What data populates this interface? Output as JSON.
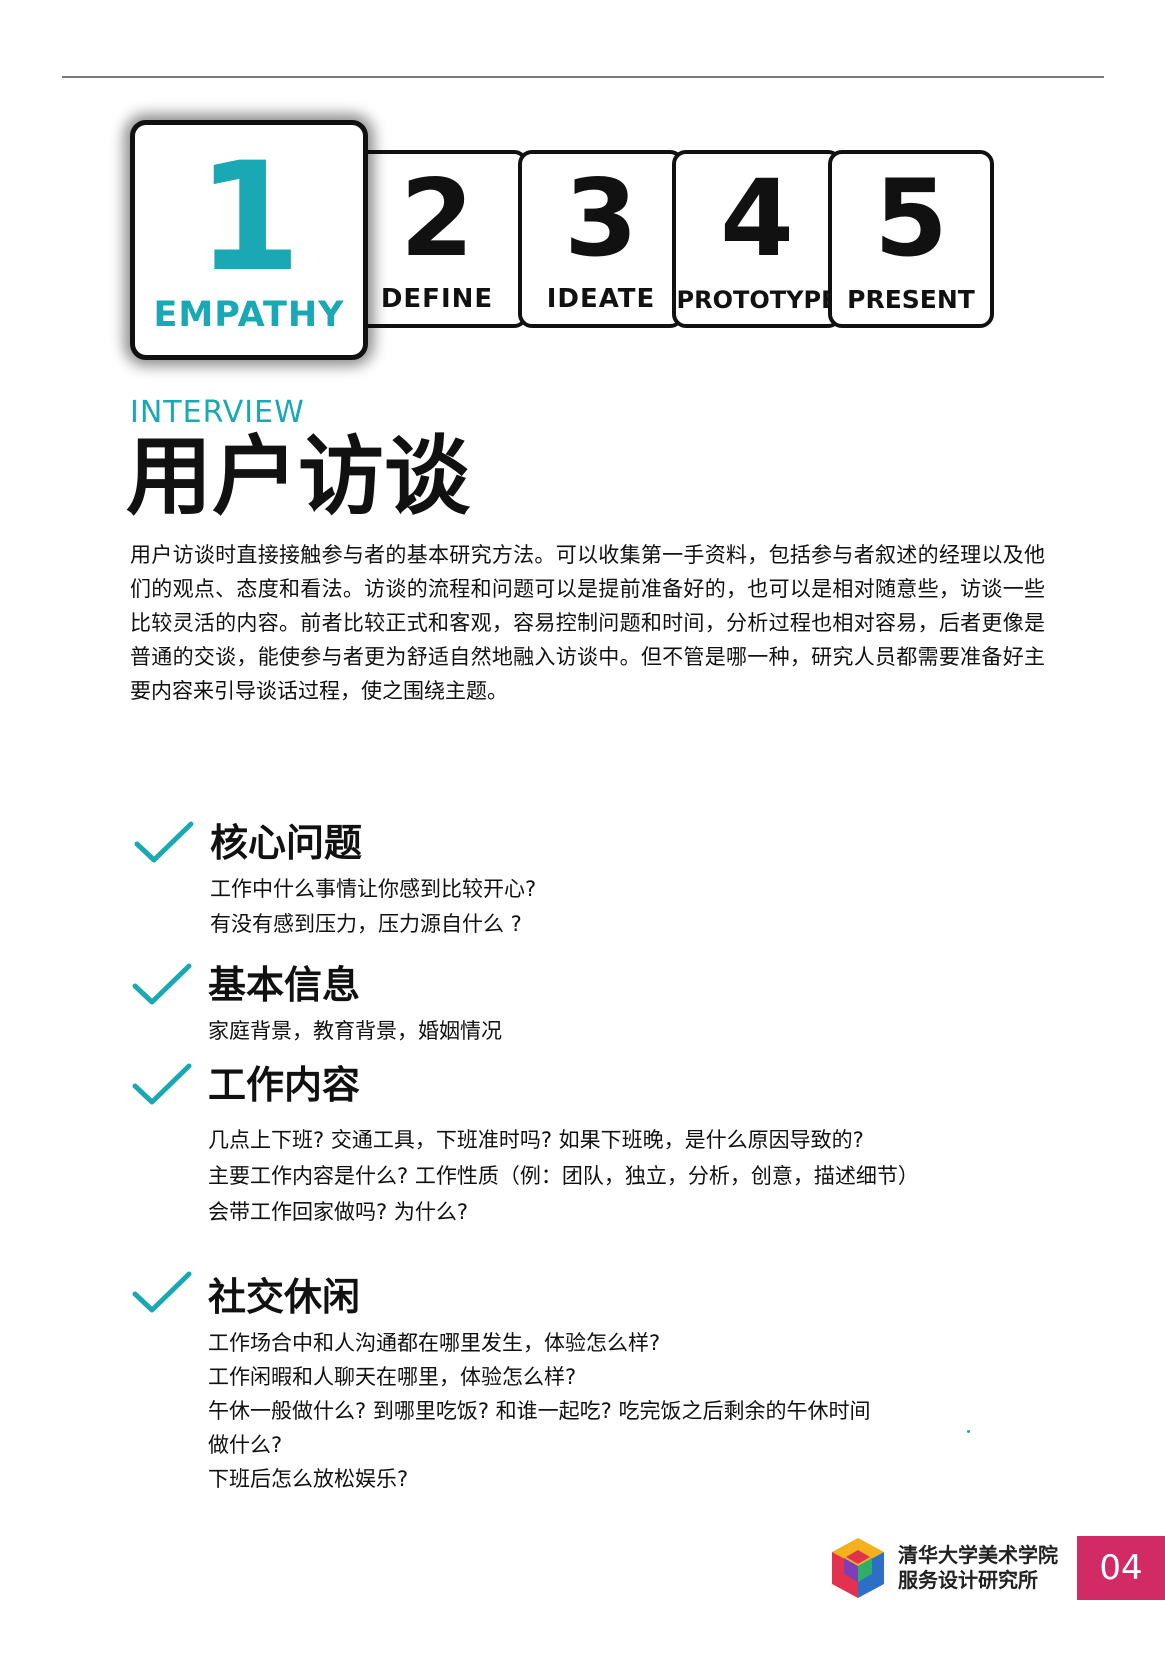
{
  "steps": [
    {
      "number": "1",
      "label": "EMPATHY"
    },
    {
      "number": "2",
      "label": "DEFINE"
    },
    {
      "number": "3",
      "label": "IDEATE"
    },
    {
      "number": "4",
      "label": "PROTOTYPE"
    },
    {
      "number": "5",
      "label": "PRESENT"
    }
  ],
  "header": {
    "subtitle": "INTERVIEW",
    "title": "用户访谈"
  },
  "intro": "用户访谈时直接接触参与者的基本研究方法。可以收集第一手资料，包括参与者叙述的经理以及他们的观点、态度和看法。访谈的流程和问题可以是提前准备好的，也可以是相对随意些，访谈一些比较灵活的内容。前者比较正式和客观，容易控制问题和时间，分析过程也相对容易，后者更像是普通的交谈，能使参与者更为舒适自然地融入访谈中。但不管是哪一种，研究人员都需要准备好主要内容来引导谈话过程，使之围绕主题。",
  "sections": [
    {
      "title": "核心问题",
      "lines": [
        "工作中什么事情让你感到比较开心?",
        "有没有感到压力，压力源自什么 ?"
      ]
    },
    {
      "title": "基本信息",
      "lines": [
        "家庭背景，教育背景，婚姻情况"
      ]
    },
    {
      "title": "工作内容",
      "lines": [
        "几点上下班? 交通工具，下班准时吗? 如果下班晚，是什么原因导致的?",
        "主要工作内容是什么? 工作性质（例：团队，独立，分析，创意，描述细节）",
        "会带工作回家做吗? 为什么?"
      ]
    },
    {
      "title": "社交休闲",
      "lines": [
        "工作场合中和人沟通都在哪里发生，体验怎么样?",
        "工作闲暇和人聊天在哪里，体验怎么样?",
        "午休一般做什么? 到哪里吃饭? 和谁一起吃? 吃完饭之后剩余的午休时间",
        "做什么?",
        "下班后怎么放松娱乐?"
      ]
    }
  ],
  "footer": {
    "org_line1": "清华大学美术学院",
    "org_line2": "服务设计研究所",
    "page_number": "04"
  },
  "colors": {
    "accent": "#1aa8b4",
    "page_badge": "#d12a64",
    "rule": "#7a7a7a"
  }
}
